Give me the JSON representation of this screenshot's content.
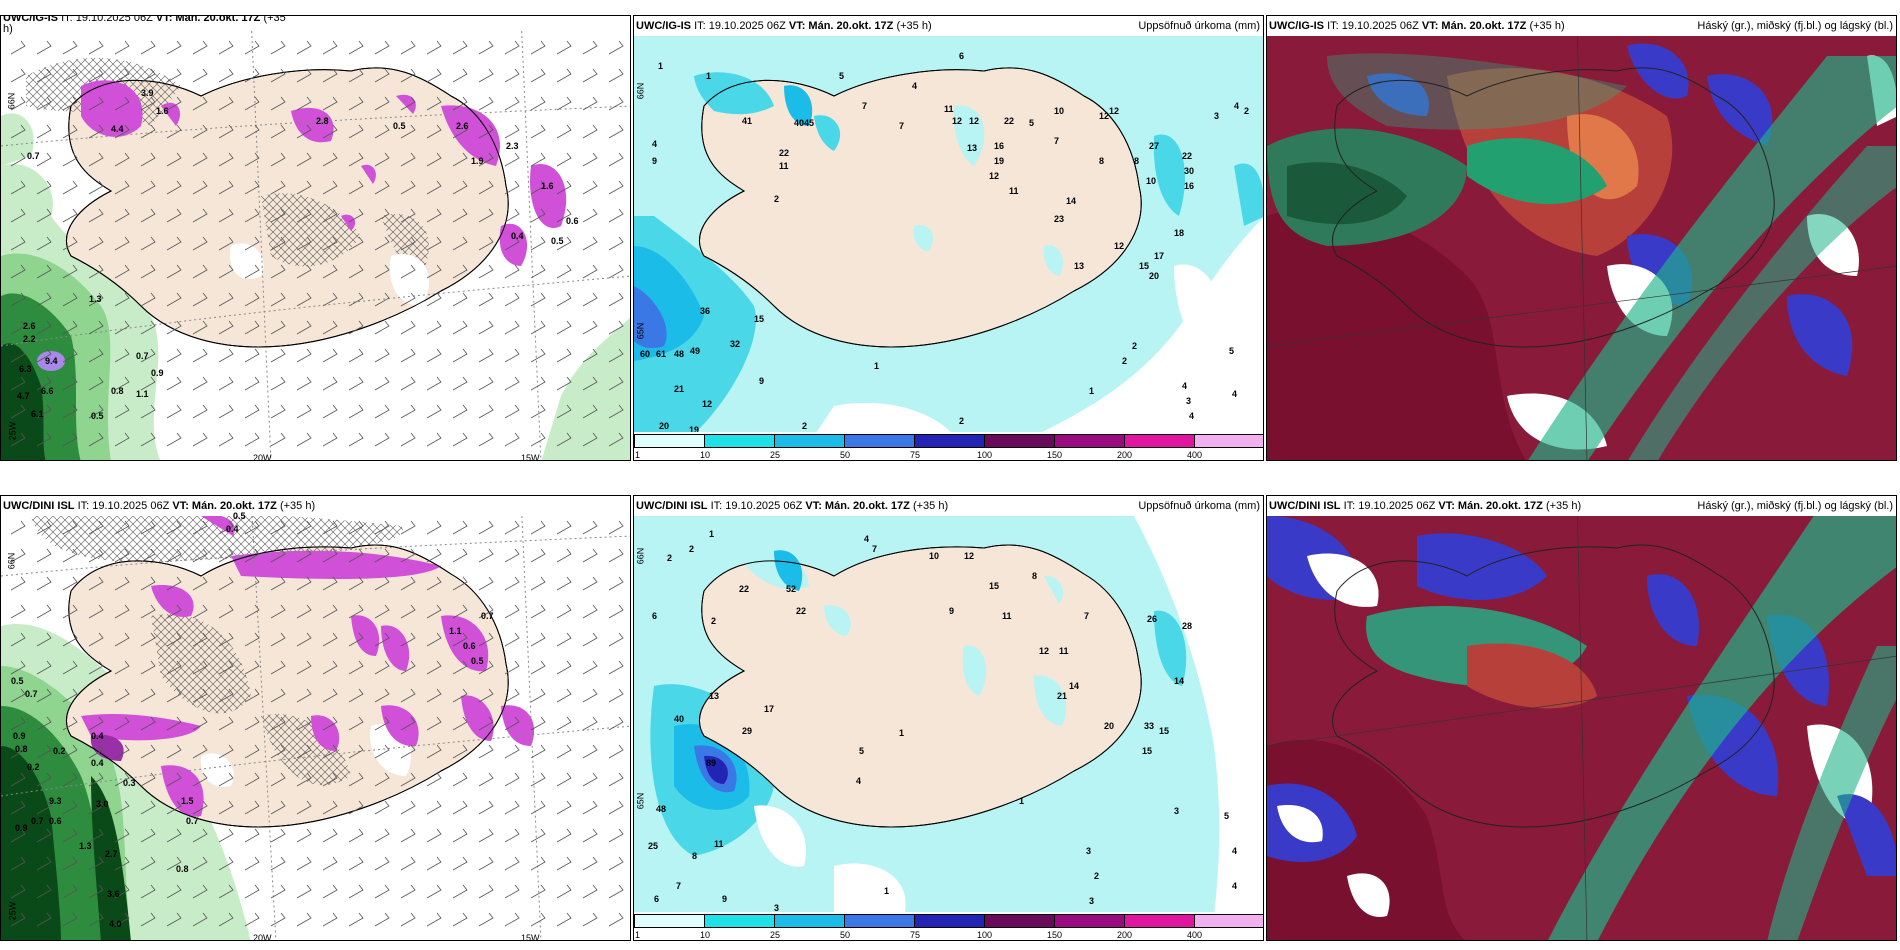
{
  "panels": {
    "tl": {
      "model": "UWC/IG-IS",
      "it": "IT: 19.10.2025 06Z",
      "vt": "VT: Mán. 20.okt. 17Z",
      "lead": "(+35",
      "lead2": "h)",
      "lon": [
        "20W",
        "15W",
        "25W"
      ],
      "lat": [
        "65N",
        "66N"
      ],
      "values": [
        "0.7",
        "1.6",
        "4.4",
        "3.9",
        "2.6",
        "0.5",
        "2.8",
        "1.9",
        "2.3",
        "1.6",
        "0.4",
        "0.6",
        "0.5",
        "1.3",
        "2.6",
        "2.2",
        "9.4",
        "6.3",
        "4.7",
        "6.6",
        "6.1",
        "0.9",
        "0.7",
        "0.8",
        "1.1",
        "0.5"
      ]
    },
    "tm": {
      "model": "UWC/IG-IS",
      "it": "IT: 19.10.2025 06Z",
      "vt": "VT: Mán. 20.okt. 17Z",
      "lead": "(+35 h)",
      "product": "Uppsöfnuð úrkoma (mm)",
      "lat": [
        "65N",
        "66N"
      ],
      "values": [
        "1",
        "1",
        "5",
        "6",
        "4",
        "3",
        "2",
        "41",
        "40",
        "45",
        "22",
        "11",
        "9",
        "4",
        "2",
        "7",
        "7",
        "11",
        "12",
        "22",
        "12",
        "13",
        "19",
        "16",
        "12",
        "11",
        "12",
        "10",
        "8",
        "5",
        "7",
        "14",
        "23",
        "12",
        "4",
        "27",
        "22",
        "30",
        "16",
        "10",
        "8",
        "15",
        "17",
        "13",
        "20",
        "12",
        "18",
        "36",
        "15",
        "32",
        "49",
        "60",
        "61",
        "48",
        "21",
        "12",
        "20",
        "19",
        "9",
        "2",
        "1",
        "2",
        "5",
        "4",
        "4",
        "3",
        "2",
        "2",
        "1",
        "4"
      ],
      "colorbar": {
        "ticks": [
          "1",
          "10",
          "25",
          "50",
          "75",
          "100",
          "150",
          "200",
          "400"
        ],
        "colors": [
          "#e0ffff",
          "#20e0e8",
          "#1cbce8",
          "#3a78e6",
          "#2424b4",
          "#6a0a5a",
          "#9a0a80",
          "#e015a0",
          "#f2b0ee"
        ]
      }
    },
    "tr": {
      "model": "UWC/IG-IS",
      "it": "IT: 19.10.2025 06Z",
      "vt": "VT: Mán. 20.okt. 17Z",
      "lead": "(+35 h)",
      "product": "Háský (gr.), miðský (fj.bl.) og lágský (bl.)"
    },
    "bl": {
      "model": "UWC/DINI ISL",
      "it": "IT: 19.10.2025 06Z",
      "vt": "VT: Mán. 20.okt. 17Z",
      "lead": "(+35 h)",
      "lon": [
        "20W",
        "15W",
        "25W"
      ],
      "lat": [
        "65N",
        "66N"
      ],
      "values": [
        "0.5",
        "0.4",
        "0.5",
        "0.7",
        "0.9",
        "0.8",
        "0.2",
        "0.2",
        "0.4",
        "0.3",
        "9.3",
        "3.0",
        "1.3",
        "2.7",
        "3.6",
        "4.0",
        "0.8",
        "0.9",
        "0.7",
        "0.6",
        "1.5",
        "0.7",
        "1.1",
        "0.6",
        "0.5",
        "0.7",
        "0.4"
      ]
    },
    "bm": {
      "model": "UWC/DINI ISL",
      "it": "IT: 19.10.2025 06Z",
      "vt": "VT: Mán. 20.okt. 17Z",
      "lead": "(+35 h)",
      "product": "Uppsöfnuð úrkoma (mm)",
      "lat": [
        "65N",
        "66N"
      ],
      "values": [
        "1",
        "2",
        "2",
        "2",
        "22",
        "52",
        "22",
        "4",
        "6",
        "7",
        "10",
        "12",
        "15",
        "9",
        "11",
        "8",
        "7",
        "26",
        "28",
        "20",
        "14",
        "21",
        "14",
        "33",
        "15",
        "15",
        "12",
        "11",
        "13",
        "29",
        "40",
        "17",
        "89",
        "48",
        "25",
        "11",
        "8",
        "7",
        "9",
        "6",
        "5",
        "3",
        "4",
        "3",
        "3",
        "5",
        "4",
        "4",
        "1",
        "3",
        "2",
        "1",
        "1"
      ],
      "colorbar": {
        "ticks": [
          "1",
          "10",
          "25",
          "50",
          "75",
          "100",
          "150",
          "200",
          "400"
        ],
        "colors": [
          "#e0ffff",
          "#20e0e8",
          "#1cbce8",
          "#3a78e6",
          "#2424b4",
          "#6a0a5a",
          "#9a0a80",
          "#e015a0",
          "#f2b0ee"
        ]
      }
    },
    "br": {
      "model": "UWC/DINI ISL",
      "it": "IT: 19.10.2025 06Z",
      "vt": "VT: Mán. 20.okt. 17Z",
      "lead": "(+35 h)",
      "product": "Háský (gr.), miðský (fj.bl.) og lágský (bl.)"
    }
  },
  "colors": {
    "land": "#f5e6d8",
    "precip_light": "#b8f4f4",
    "precip_mid": "#4ad8e8",
    "precip_heavy": "#1a80e0",
    "cloud_high": "#1fb488",
    "cloud_mid": "#8a1a3a",
    "cloud_low": "#3a3ac8",
    "wind_green": "#2a8a3a",
    "wind_magenta": "#d050d8"
  }
}
